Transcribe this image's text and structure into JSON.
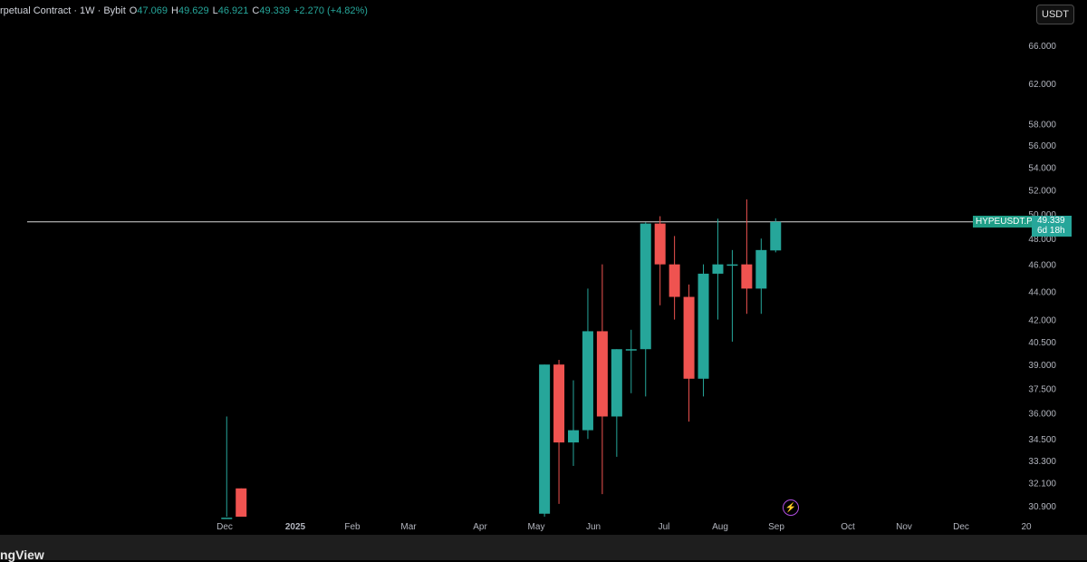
{
  "header": {
    "title": "rpetual Contract · 1W · Bybit",
    "open_label": "O",
    "open_value": "47.069",
    "high_label": "H",
    "high_value": "49.629",
    "low_label": "L",
    "low_value": "46.921",
    "close_label": "C",
    "close_value": "49.339",
    "change": "+2.270 (+4.82%)"
  },
  "currency_button": "USDT",
  "price_label": {
    "symbol": "HYPEUSDT.P",
    "price": "49.339",
    "countdown": "6d 18h"
  },
  "footer": {
    "brand": "ngView"
  },
  "colors": {
    "up": "#26a69a",
    "down": "#ef5350",
    "background": "#000000",
    "axis_text": "#b2b5be"
  },
  "chart_data": {
    "type": "candlestick",
    "title": "",
    "y_axis": {
      "ticks": [
        "30.900",
        "32.100",
        "33.300",
        "34.500",
        "36.000",
        "37.500",
        "39.000",
        "40.500",
        "42.000",
        "44.000",
        "46.000",
        "48.000",
        "50.000",
        "52.000",
        "54.000",
        "56.000",
        "58.000",
        "62.000",
        "66.000"
      ],
      "range": [
        30.2,
        69.0
      ],
      "scale": "log"
    },
    "x_axis": {
      "labels": [
        "Dec",
        "2025",
        "Feb",
        "Mar",
        "Apr",
        "May",
        "Jun",
        "Jul",
        "Aug",
        "Sep",
        "Oct",
        "Nov",
        "Dec",
        "20"
      ]
    },
    "last_price": 49.339,
    "candles": [
      {
        "date": "2024-12-02",
        "open": 30.3,
        "high": 35.8,
        "low": 30.2,
        "close": 30.3
      },
      {
        "date": "2024-12-09",
        "open": 31.8,
        "high": 31.8,
        "low": 30.2,
        "close": 30.3
      },
      {
        "date": "2025-05-05",
        "open": 30.5,
        "high": 39.0,
        "low": 30.3,
        "close": 39.0
      },
      {
        "date": "2025-05-12",
        "open": 39.0,
        "high": 39.3,
        "low": 31.0,
        "close": 34.3
      },
      {
        "date": "2025-05-19",
        "open": 34.3,
        "high": 38.0,
        "low": 33.0,
        "close": 35.0
      },
      {
        "date": "2025-05-26",
        "open": 35.0,
        "high": 44.2,
        "low": 34.5,
        "close": 41.2
      },
      {
        "date": "2025-06-02",
        "open": 41.2,
        "high": 46.0,
        "low": 31.5,
        "close": 35.8
      },
      {
        "date": "2025-06-09",
        "open": 35.8,
        "high": 40.0,
        "low": 33.5,
        "close": 40.0
      },
      {
        "date": "2025-06-16",
        "open": 40.0,
        "high": 41.3,
        "low": 37.2,
        "close": 40.0
      },
      {
        "date": "2025-06-23",
        "open": 40.0,
        "high": 49.3,
        "low": 37.0,
        "close": 49.2
      },
      {
        "date": "2025-06-30",
        "open": 49.2,
        "high": 49.8,
        "low": 43.0,
        "close": 46.0
      },
      {
        "date": "2025-07-07",
        "open": 46.0,
        "high": 48.2,
        "low": 42.0,
        "close": 43.6
      },
      {
        "date": "2025-07-14",
        "open": 43.6,
        "high": 44.5,
        "low": 35.5,
        "close": 38.1
      },
      {
        "date": "2025-07-21",
        "open": 38.1,
        "high": 46.0,
        "low": 37.0,
        "close": 45.3
      },
      {
        "date": "2025-07-28",
        "open": 45.3,
        "high": 49.6,
        "low": 42.0,
        "close": 46.0
      },
      {
        "date": "2025-08-04",
        "open": 46.0,
        "high": 47.1,
        "low": 40.5,
        "close": 46.0
      },
      {
        "date": "2025-08-11",
        "open": 46.0,
        "high": 51.2,
        "low": 42.4,
        "close": 44.2
      },
      {
        "date": "2025-08-18",
        "open": 44.2,
        "high": 48.0,
        "low": 42.4,
        "close": 47.1
      },
      {
        "date": "2025-08-25",
        "open": 47.069,
        "high": 49.629,
        "low": 46.921,
        "close": 49.339
      }
    ]
  }
}
